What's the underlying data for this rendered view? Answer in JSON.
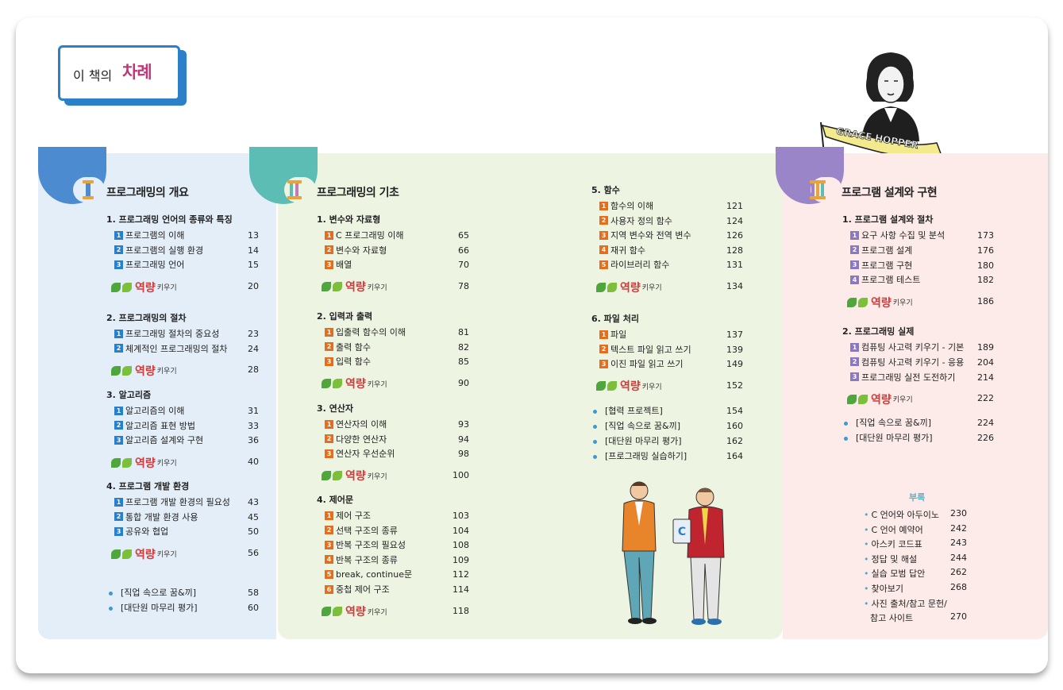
{
  "header": {
    "title_prefix": "이 책의",
    "title_main": "차례"
  },
  "portrait": {
    "banner": "GRACE HOPPER"
  },
  "capability_label": {
    "big": "역량",
    "small": "키우기"
  },
  "sections": [
    {
      "title": "프로그래밍의 개요"
    },
    {
      "title": "프로그래밍의 기초"
    },
    {
      "title": "프로그램 설계와 구현"
    }
  ],
  "col1": {
    "chapters": [
      {
        "title": "1. 프로그래밍 언어의 종류와 특징",
        "items": [
          {
            "n": "1",
            "label": "프로그램의 이해",
            "page": "13"
          },
          {
            "n": "2",
            "label": "프로그램의 실행 환경",
            "page": "14"
          },
          {
            "n": "3",
            "label": "프로그래밍 언어",
            "page": "15"
          }
        ],
        "cap_page": "20"
      },
      {
        "title": "2. 프로그래밍의 절차",
        "items": [
          {
            "n": "1",
            "label": "프로그래밍 절차의 중요성",
            "page": "23"
          },
          {
            "n": "2",
            "label": "체계적인 프로그래밍의 절차",
            "page": "24"
          }
        ],
        "cap_page": "28"
      },
      {
        "title": "3. 알고리즘",
        "items": [
          {
            "n": "1",
            "label": "알고리즘의 이해",
            "page": "31"
          },
          {
            "n": "2",
            "label": "알고리즘 표현 방법",
            "page": "33"
          },
          {
            "n": "3",
            "label": "알고리즘 설계와 구현",
            "page": "36"
          }
        ],
        "cap_page": "40"
      },
      {
        "title": "4. 프로그램 개발 환경",
        "items": [
          {
            "n": "1",
            "label": "프로그램 개발 환경의 필요성",
            "page": "43"
          },
          {
            "n": "2",
            "label": "통합 개발 환경 사용",
            "page": "45"
          },
          {
            "n": "3",
            "label": "공유와 협업",
            "page": "50"
          }
        ],
        "cap_page": "56"
      }
    ],
    "extras": [
      {
        "label": "[직업 속으로 꿈&끼]",
        "page": "58"
      },
      {
        "label": "[대단원 마무리 평가]",
        "page": "60"
      }
    ]
  },
  "col2": {
    "chapters": [
      {
        "title": "1. 변수와 자료형",
        "items": [
          {
            "n": "1",
            "label": "C 프로그래밍 이해",
            "page": "65"
          },
          {
            "n": "2",
            "label": "변수와 자료형",
            "page": "66"
          },
          {
            "n": "3",
            "label": "배열",
            "page": "70"
          }
        ],
        "cap_page": "78"
      },
      {
        "title": "2. 입력과 출력",
        "items": [
          {
            "n": "1",
            "label": "입출력 함수의 이해",
            "page": "81"
          },
          {
            "n": "2",
            "label": "출력 함수",
            "page": "82"
          },
          {
            "n": "3",
            "label": "입력 함수",
            "page": "85"
          }
        ],
        "cap_page": "90"
      },
      {
        "title": "3. 연산자",
        "items": [
          {
            "n": "1",
            "label": "연산자의 이해",
            "page": "93"
          },
          {
            "n": "2",
            "label": "다양한 연산자",
            "page": "94"
          },
          {
            "n": "3",
            "label": "연산자 우선순위",
            "page": "98"
          }
        ],
        "cap_page": "100"
      },
      {
        "title": "4. 제어문",
        "items": [
          {
            "n": "1",
            "label": "제어 구조",
            "page": "103"
          },
          {
            "n": "2",
            "label": "선택 구조의 종류",
            "page": "104"
          },
          {
            "n": "3",
            "label": "반복 구조의 필요성",
            "page": "108"
          },
          {
            "n": "4",
            "label": "반복 구조의 종류",
            "page": "109"
          },
          {
            "n": "5",
            "label": "break, continue문",
            "page": "112"
          },
          {
            "n": "6",
            "label": "중첩 제어 구조",
            "page": "114"
          }
        ],
        "cap_page": "118"
      }
    ]
  },
  "col3": {
    "chapters": [
      {
        "title": "5. 함수",
        "items": [
          {
            "n": "1",
            "label": "함수의 이해",
            "page": "121"
          },
          {
            "n": "2",
            "label": "사용자 정의 함수",
            "page": "124"
          },
          {
            "n": "3",
            "label": "지역 변수와 전역 변수",
            "page": "126"
          },
          {
            "n": "4",
            "label": "재귀 함수",
            "page": "128"
          },
          {
            "n": "5",
            "label": "라이브러리 함수",
            "page": "131"
          }
        ],
        "cap_page": "134"
      },
      {
        "title": "6. 파일 처리",
        "items": [
          {
            "n": "1",
            "label": "파일",
            "page": "137"
          },
          {
            "n": "2",
            "label": "텍스트 파일 읽고 쓰기",
            "page": "139"
          },
          {
            "n": "3",
            "label": "이진 파일 읽고 쓰기",
            "page": "149"
          }
        ],
        "cap_page": "152"
      }
    ],
    "extras": [
      {
        "label": "[협력 프로젝트]",
        "page": "154"
      },
      {
        "label": "[직업 속으로 꿈&끼]",
        "page": "160"
      },
      {
        "label": "[대단원 마무리 평가]",
        "page": "162"
      },
      {
        "label": "[프로그래밍 실습하기]",
        "page": "164"
      }
    ]
  },
  "col4": {
    "chapters": [
      {
        "title": "1. 프로그램 설계와 절차",
        "items": [
          {
            "n": "1",
            "label": "요구 사항 수집 및 분석",
            "page": "173"
          },
          {
            "n": "2",
            "label": "프로그램 설계",
            "page": "176"
          },
          {
            "n": "3",
            "label": "프로그램 구현",
            "page": "180"
          },
          {
            "n": "4",
            "label": "프로그램 테스트",
            "page": "182"
          }
        ],
        "cap_page": "186"
      },
      {
        "title": "2. 프로그래밍 실제",
        "items": [
          {
            "n": "1",
            "label": "컴퓨팅 사고력 키우기 - 기본",
            "page": "189"
          },
          {
            "n": "2",
            "label": "컴퓨팅 사고력 키우기 - 응용",
            "page": "204"
          },
          {
            "n": "3",
            "label": "프로그래밍 실전 도전하기",
            "page": "214"
          }
        ],
        "cap_page": "222"
      }
    ],
    "extras": [
      {
        "label": "[직업 속으로 꿈&끼]",
        "page": "224"
      },
      {
        "label": "[대단원 마무리 평가]",
        "page": "226"
      }
    ]
  },
  "appendix": {
    "title": "부록",
    "items": [
      {
        "label": "C 언어와 아두이노",
        "page": "230"
      },
      {
        "label": "C 언어 예약어",
        "page": "242"
      },
      {
        "label": "아스키 코드표",
        "page": "243"
      },
      {
        "label": "정답 및 해설",
        "page": "244"
      },
      {
        "label": "실습 모범 답안",
        "page": "262"
      },
      {
        "label": "찾아보기",
        "page": "268"
      },
      {
        "label": "사진 출처/참고 문헌/",
        "page": ""
      },
      {
        "label": "참고 사이트",
        "page": "270"
      }
    ]
  },
  "colors": {
    "blue": "#2a7fcc",
    "orange": "#e86c1a",
    "purple": "#8b78c4",
    "title_pink": "#c2357a"
  }
}
